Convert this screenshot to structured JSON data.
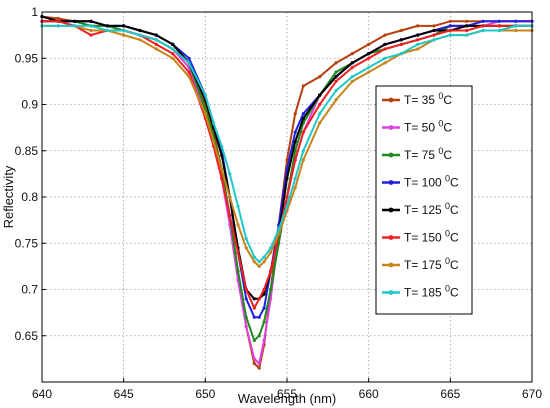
{
  "chart_data": {
    "type": "line",
    "xlabel": "Wavelength (nm)",
    "ylabel": "Reflectivity",
    "xlim": [
      640,
      670
    ],
    "ylim": [
      0.6,
      1.0
    ],
    "x_ticks": [
      "640",
      "645",
      "650",
      "655",
      "660",
      "665",
      "670"
    ],
    "y_ticks": [
      "0.65",
      "0.7",
      "0.75",
      "0.8",
      "0.85",
      "0.9",
      "0.95",
      "1"
    ],
    "grid": true,
    "legend_position": "right",
    "series": [
      {
        "name": "T= 35",
        "unit_sup": "0",
        "unit": "C",
        "color": "#b5400e",
        "x": [
          640,
          641,
          642,
          643,
          644,
          645,
          646,
          647,
          648,
          649,
          650,
          650.5,
          651,
          651.5,
          652,
          652.5,
          653,
          653.3,
          653.6,
          654,
          654.5,
          655,
          655.5,
          656,
          657,
          658,
          659,
          660,
          661,
          662,
          663,
          664,
          665,
          666,
          667,
          668,
          669,
          670
        ],
        "y": [
          0.995,
          0.993,
          0.99,
          0.99,
          0.985,
          0.985,
          0.98,
          0.975,
          0.965,
          0.945,
          0.9,
          0.87,
          0.83,
          0.78,
          0.72,
          0.66,
          0.62,
          0.615,
          0.64,
          0.7,
          0.77,
          0.84,
          0.89,
          0.92,
          0.93,
          0.945,
          0.955,
          0.965,
          0.975,
          0.98,
          0.985,
          0.985,
          0.99,
          0.99,
          0.99,
          0.99,
          0.99,
          0.99
        ]
      },
      {
        "name": "T= 50",
        "unit_sup": "0",
        "unit": "C",
        "color": "#e040e0",
        "x": [
          640,
          641,
          642,
          643,
          644,
          645,
          646,
          647,
          648,
          649,
          650,
          650.5,
          651,
          651.5,
          652,
          652.5,
          653,
          653.3,
          653.6,
          654,
          654.5,
          655,
          655.5,
          656,
          657,
          658,
          659,
          660,
          661,
          662,
          663,
          664,
          665,
          666,
          667,
          668,
          669,
          670
        ],
        "y": [
          0.995,
          0.99,
          0.99,
          0.985,
          0.985,
          0.98,
          0.975,
          0.97,
          0.96,
          0.94,
          0.89,
          0.86,
          0.82,
          0.77,
          0.71,
          0.66,
          0.625,
          0.62,
          0.645,
          0.69,
          0.76,
          0.8,
          0.84,
          0.87,
          0.91,
          0.93,
          0.945,
          0.955,
          0.965,
          0.97,
          0.975,
          0.98,
          0.985,
          0.985,
          0.985,
          0.99,
          0.99,
          0.99
        ]
      },
      {
        "name": "T= 75",
        "unit_sup": "0",
        "unit": "C",
        "color": "#1e8a1e",
        "x": [
          640,
          641,
          642,
          643,
          644,
          645,
          646,
          647,
          648,
          649,
          650,
          650.5,
          651,
          651.5,
          652,
          652.5,
          653,
          653.3,
          653.6,
          654,
          654.5,
          655,
          655.5,
          656,
          657,
          658,
          659,
          660,
          661,
          662,
          663,
          664,
          665,
          666,
          667,
          668,
          669,
          670
        ],
        "y": [
          0.99,
          0.99,
          0.99,
          0.985,
          0.985,
          0.98,
          0.975,
          0.97,
          0.96,
          0.945,
          0.895,
          0.865,
          0.83,
          0.78,
          0.72,
          0.67,
          0.645,
          0.65,
          0.665,
          0.7,
          0.75,
          0.8,
          0.85,
          0.88,
          0.91,
          0.935,
          0.945,
          0.955,
          0.96,
          0.965,
          0.97,
          0.975,
          0.985,
          0.985,
          0.985,
          0.985,
          0.985,
          0.985
        ]
      },
      {
        "name": "T= 100",
        "unit_sup": "0",
        "unit": "C",
        "color": "#2020e0",
        "x": [
          640,
          641,
          642,
          643,
          644,
          645,
          646,
          647,
          648,
          649,
          650,
          650.5,
          651,
          651.5,
          652,
          652.5,
          653,
          653.3,
          653.6,
          654,
          654.5,
          655,
          655.5,
          656,
          657,
          658,
          659,
          660,
          661,
          662,
          663,
          664,
          665,
          666,
          667,
          668,
          669,
          670
        ],
        "y": [
          0.99,
          0.99,
          0.99,
          0.99,
          0.985,
          0.985,
          0.98,
          0.975,
          0.965,
          0.95,
          0.91,
          0.88,
          0.85,
          0.8,
          0.74,
          0.69,
          0.67,
          0.67,
          0.68,
          0.72,
          0.77,
          0.83,
          0.87,
          0.89,
          0.91,
          0.93,
          0.945,
          0.955,
          0.965,
          0.97,
          0.975,
          0.98,
          0.985,
          0.985,
          0.99,
          0.99,
          0.99,
          0.99
        ]
      },
      {
        "name": "T= 125",
        "unit_sup": "0",
        "unit": "C",
        "color": "#000000",
        "x": [
          640,
          641,
          642,
          643,
          644,
          645,
          646,
          647,
          648,
          649,
          650,
          650.5,
          651,
          651.5,
          652,
          652.5,
          653,
          653.3,
          653.6,
          654,
          654.5,
          655,
          655.5,
          656,
          657,
          658,
          659,
          660,
          661,
          662,
          663,
          664,
          665,
          666,
          667,
          668,
          669,
          670
        ],
        "y": [
          0.995,
          0.99,
          0.99,
          0.99,
          0.985,
          0.985,
          0.98,
          0.975,
          0.965,
          0.945,
          0.905,
          0.875,
          0.845,
          0.8,
          0.745,
          0.7,
          0.69,
          0.69,
          0.695,
          0.72,
          0.76,
          0.82,
          0.86,
          0.885,
          0.91,
          0.93,
          0.945,
          0.955,
          0.965,
          0.97,
          0.975,
          0.98,
          0.98,
          0.985,
          0.985,
          0.985,
          0.985,
          0.985
        ]
      },
      {
        "name": "T= 150",
        "unit_sup": "0",
        "unit": "C",
        "color": "#f02020",
        "x": [
          640,
          641,
          642,
          643,
          644,
          645,
          646,
          647,
          648,
          649,
          650,
          650.5,
          651,
          651.5,
          652,
          652.5,
          653,
          653.3,
          653.6,
          654,
          654.5,
          655,
          655.5,
          656,
          657,
          658,
          659,
          660,
          661,
          662,
          663,
          664,
          665,
          666,
          667,
          668,
          669,
          670
        ],
        "y": [
          0.99,
          0.99,
          0.985,
          0.975,
          0.98,
          0.98,
          0.975,
          0.965,
          0.955,
          0.935,
          0.885,
          0.855,
          0.82,
          0.78,
          0.74,
          0.7,
          0.68,
          0.69,
          0.7,
          0.72,
          0.76,
          0.8,
          0.84,
          0.87,
          0.9,
          0.925,
          0.94,
          0.95,
          0.96,
          0.965,
          0.97,
          0.975,
          0.98,
          0.98,
          0.985,
          0.985,
          0.985,
          0.985
        ]
      },
      {
        "name": "T= 175",
        "unit_sup": "0",
        "unit": "C",
        "color": "#c8841a",
        "x": [
          640,
          641,
          642,
          643,
          644,
          645,
          646,
          647,
          648,
          649,
          650,
          650.5,
          651,
          651.5,
          652,
          652.5,
          653,
          653.3,
          653.6,
          654,
          654.5,
          655,
          655.5,
          656,
          657,
          658,
          659,
          660,
          661,
          662,
          663,
          664,
          665,
          666,
          667,
          668,
          669,
          670
        ],
        "y": [
          0.985,
          0.985,
          0.985,
          0.98,
          0.98,
          0.975,
          0.97,
          0.96,
          0.95,
          0.93,
          0.89,
          0.86,
          0.83,
          0.8,
          0.77,
          0.745,
          0.73,
          0.725,
          0.73,
          0.74,
          0.76,
          0.785,
          0.81,
          0.84,
          0.88,
          0.905,
          0.925,
          0.935,
          0.945,
          0.955,
          0.96,
          0.97,
          0.975,
          0.975,
          0.98,
          0.98,
          0.98,
          0.98
        ]
      },
      {
        "name": "T= 185",
        "unit_sup": "0",
        "unit": "C",
        "color": "#1ec8c8",
        "x": [
          640,
          641,
          642,
          643,
          644,
          645,
          646,
          647,
          648,
          649,
          650,
          650.5,
          651,
          651.5,
          652,
          652.5,
          653,
          653.3,
          653.6,
          654,
          654.5,
          655,
          655.5,
          656,
          657,
          658,
          659,
          660,
          661,
          662,
          663,
          664,
          665,
          666,
          667,
          668,
          669,
          670
        ],
        "y": [
          0.985,
          0.985,
          0.985,
          0.985,
          0.98,
          0.98,
          0.975,
          0.97,
          0.96,
          0.945,
          0.91,
          0.88,
          0.855,
          0.825,
          0.79,
          0.755,
          0.735,
          0.73,
          0.735,
          0.745,
          0.765,
          0.79,
          0.82,
          0.85,
          0.89,
          0.915,
          0.93,
          0.94,
          0.95,
          0.955,
          0.965,
          0.97,
          0.975,
          0.975,
          0.98,
          0.98,
          0.985,
          0.985
        ]
      }
    ]
  }
}
